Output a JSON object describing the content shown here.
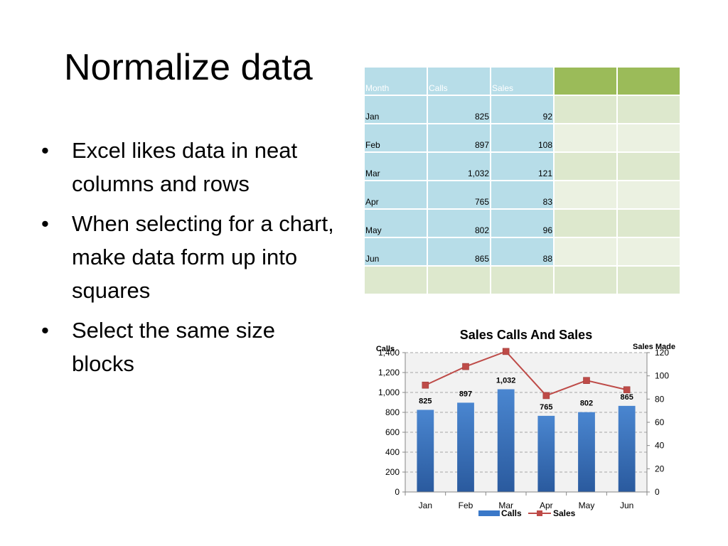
{
  "slide": {
    "title": "Normalize data",
    "bullet_char": "•",
    "bullets": [
      "Excel likes data in neat columns and rows",
      "When selecting for a chart, make data form up into squares",
      "Select the same size blocks"
    ]
  },
  "table": {
    "headers": [
      "Month",
      "Calls",
      "Sales"
    ],
    "rows": [
      [
        "Jan",
        "825",
        "92"
      ],
      [
        "Feb",
        "897",
        "108"
      ],
      [
        "Mar",
        "1,032",
        "121"
      ],
      [
        "Apr",
        "765",
        "83"
      ],
      [
        "May",
        "802",
        "96"
      ],
      [
        "Jun",
        "865",
        "88"
      ]
    ]
  },
  "chart_data": {
    "type": "bar",
    "title": "Sales Calls And Sales",
    "categories": [
      "Jan",
      "Feb",
      "Mar",
      "Apr",
      "May",
      "Jun"
    ],
    "series": [
      {
        "name": "Calls",
        "type": "bar",
        "axis": "left",
        "values": [
          825,
          897,
          1032,
          765,
          802,
          865
        ],
        "data_labels": [
          "825",
          "897",
          "1,032",
          "765",
          "802",
          "865"
        ],
        "color": "#3a78c8"
      },
      {
        "name": "Sales",
        "type": "line",
        "axis": "right",
        "values": [
          92,
          108,
          121,
          83,
          96,
          88
        ],
        "color": "#be4b48"
      }
    ],
    "ylabel": "Calls",
    "ylim": [
      0,
      1400
    ],
    "yticks": [
      "0",
      "200",
      "400",
      "600",
      "800",
      "1,000",
      "1,200",
      "1,400"
    ],
    "y2label": "Sales Made",
    "y2lim": [
      0,
      120
    ],
    "y2ticks": [
      "0",
      "20",
      "40",
      "60",
      "80",
      "100",
      "120"
    ],
    "grid": true,
    "legend": "bottom",
    "colors": {
      "plot_bg": "#f2f2f2",
      "grid": "#a6a6a6",
      "axis": "#868686"
    }
  }
}
